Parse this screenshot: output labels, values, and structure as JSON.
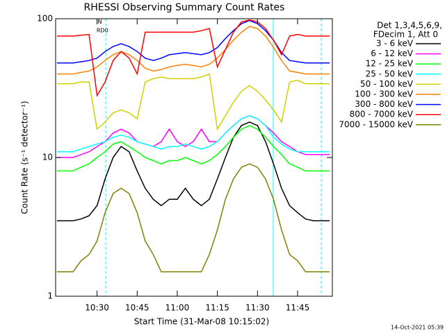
{
  "chart_data": {
    "type": "line",
    "title": "RHESSI Observing Summary Count Rates",
    "x_label": "Start Time (31-Mar-08 10:15:02)",
    "y_label": "Count Rate (s⁻¹ detector⁻¹)",
    "legend_title": [
      "Det 1,3,4,5,6,9,",
      "FDecim 1, Att 0"
    ],
    "footnote": "14-Oct-2021 05:39",
    "annotations": [
      {
        "text": "N",
        "x": 631,
        "y": 95
      },
      {
        "text": "RD0",
        "x": 632,
        "y": 82
      }
    ],
    "log_y": true,
    "legend": "right",
    "xlim": [
      614.5,
      718
    ],
    "ylim": [
      1,
      100
    ],
    "xticks": [
      {
        "value": 630,
        "label": "10:30"
      },
      {
        "value": 645,
        "label": "10:45"
      },
      {
        "value": 660,
        "label": "11:00"
      },
      {
        "value": 675,
        "label": "11:15"
      },
      {
        "value": 690,
        "label": "11:30"
      },
      {
        "value": 705,
        "label": "11:45"
      }
    ],
    "yticks": [
      1,
      10,
      100
    ],
    "x": [
      615,
      618,
      621,
      624,
      627,
      630,
      633,
      636,
      639,
      642,
      645,
      648,
      651,
      654,
      657,
      660,
      663,
      666,
      669,
      672,
      675,
      678,
      681,
      684,
      687,
      690,
      693,
      696,
      699,
      702,
      705,
      708,
      711,
      714,
      717
    ],
    "series": [
      {
        "name": "3 - 6 keV",
        "color": "#000000",
        "values": [
          3.5,
          3.5,
          3.5,
          3.6,
          3.8,
          4.5,
          7,
          10,
          12,
          11,
          8,
          6,
          5,
          4.5,
          5,
          5,
          6,
          5,
          4.5,
          5,
          7,
          10,
          14,
          17,
          18,
          17,
          13,
          9,
          6,
          4.5,
          4,
          3.6,
          3.5,
          3.5,
          3.5
        ]
      },
      {
        "name": "6 - 12 keV",
        "color": "#ff00ff",
        "values": [
          10,
          10,
          10,
          10.5,
          11,
          12,
          13,
          15,
          16,
          15,
          13,
          12.5,
          12,
          13,
          16,
          13,
          12,
          13,
          16,
          13,
          13,
          15,
          17,
          19,
          20,
          19,
          17,
          15,
          13,
          12,
          11,
          10.5,
          10.5,
          10.5,
          10.5
        ]
      },
      {
        "name": "12 - 25 keV",
        "color": "#00ff00",
        "values": [
          8,
          8,
          8,
          8.5,
          9,
          10,
          11,
          12.5,
          13,
          12,
          11,
          10,
          9.5,
          9,
          9.5,
          9.5,
          10,
          9.5,
          9,
          9.5,
          10.5,
          12,
          14,
          16,
          17,
          16,
          14,
          12,
          10.5,
          9,
          8.5,
          8,
          8,
          8,
          8
        ]
      },
      {
        "name": "25 - 50 keV",
        "color": "#00ffff",
        "values": [
          11,
          11,
          11,
          11.5,
          12,
          12.5,
          13,
          14,
          14.5,
          14,
          13,
          12.5,
          12,
          11.5,
          12,
          12,
          12.5,
          12,
          11.5,
          12,
          13,
          15,
          17,
          19,
          20,
          19,
          17,
          14,
          12.5,
          11.5,
          11,
          11,
          11,
          11,
          11
        ]
      },
      {
        "name": "50 - 100 keV",
        "color": "#d0d000",
        "values": [
          34,
          34,
          34,
          35,
          35,
          16,
          18,
          21,
          22,
          21,
          19,
          35,
          37,
          38,
          37,
          37,
          37,
          37,
          38,
          40,
          16,
          20,
          25,
          30,
          33,
          30,
          26,
          22,
          18,
          35,
          36,
          34,
          34,
          34,
          34
        ]
      },
      {
        "name": "100 - 300 keV",
        "color": "#ff8000",
        "values": [
          40,
          40,
          40,
          41,
          42,
          45,
          50,
          55,
          58,
          55,
          50,
          44,
          42,
          43,
          45,
          46,
          47,
          46,
          45,
          47,
          52,
          60,
          70,
          80,
          88,
          85,
          75,
          62,
          50,
          42,
          41,
          40,
          40,
          40,
          40
        ]
      },
      {
        "name": "300 - 800 keV",
        "color": "#0000ff",
        "values": [
          48,
          48,
          48,
          49,
          50,
          52,
          58,
          63,
          66,
          63,
          58,
          52,
          50,
          52,
          55,
          56,
          57,
          56,
          55,
          57,
          62,
          72,
          82,
          92,
          97,
          92,
          82,
          70,
          57,
          50,
          49,
          48,
          48,
          48,
          48
        ]
      },
      {
        "name": "800 - 7000 keV",
        "color": "#ff0000",
        "values": [
          75,
          75,
          75,
          76,
          77,
          28,
          35,
          50,
          58,
          52,
          40,
          80,
          80,
          80,
          80,
          80,
          80,
          80,
          82,
          85,
          45,
          60,
          80,
          95,
          98,
          95,
          85,
          70,
          55,
          75,
          77,
          75,
          75,
          75,
          75
        ]
      },
      {
        "name": "7000 - 15000 keV",
        "color": "#808000",
        "values": [
          1.5,
          1.5,
          1.5,
          1.8,
          2,
          2.5,
          4,
          5.5,
          6,
          5.5,
          4,
          2.5,
          2,
          1.5,
          1.5,
          1.5,
          1.5,
          1.5,
          1.5,
          2,
          3,
          5,
          7,
          8.5,
          9,
          8.5,
          7,
          5,
          3,
          2,
          1.8,
          1.5,
          1.5,
          1.5,
          1.5
        ]
      }
    ]
  }
}
